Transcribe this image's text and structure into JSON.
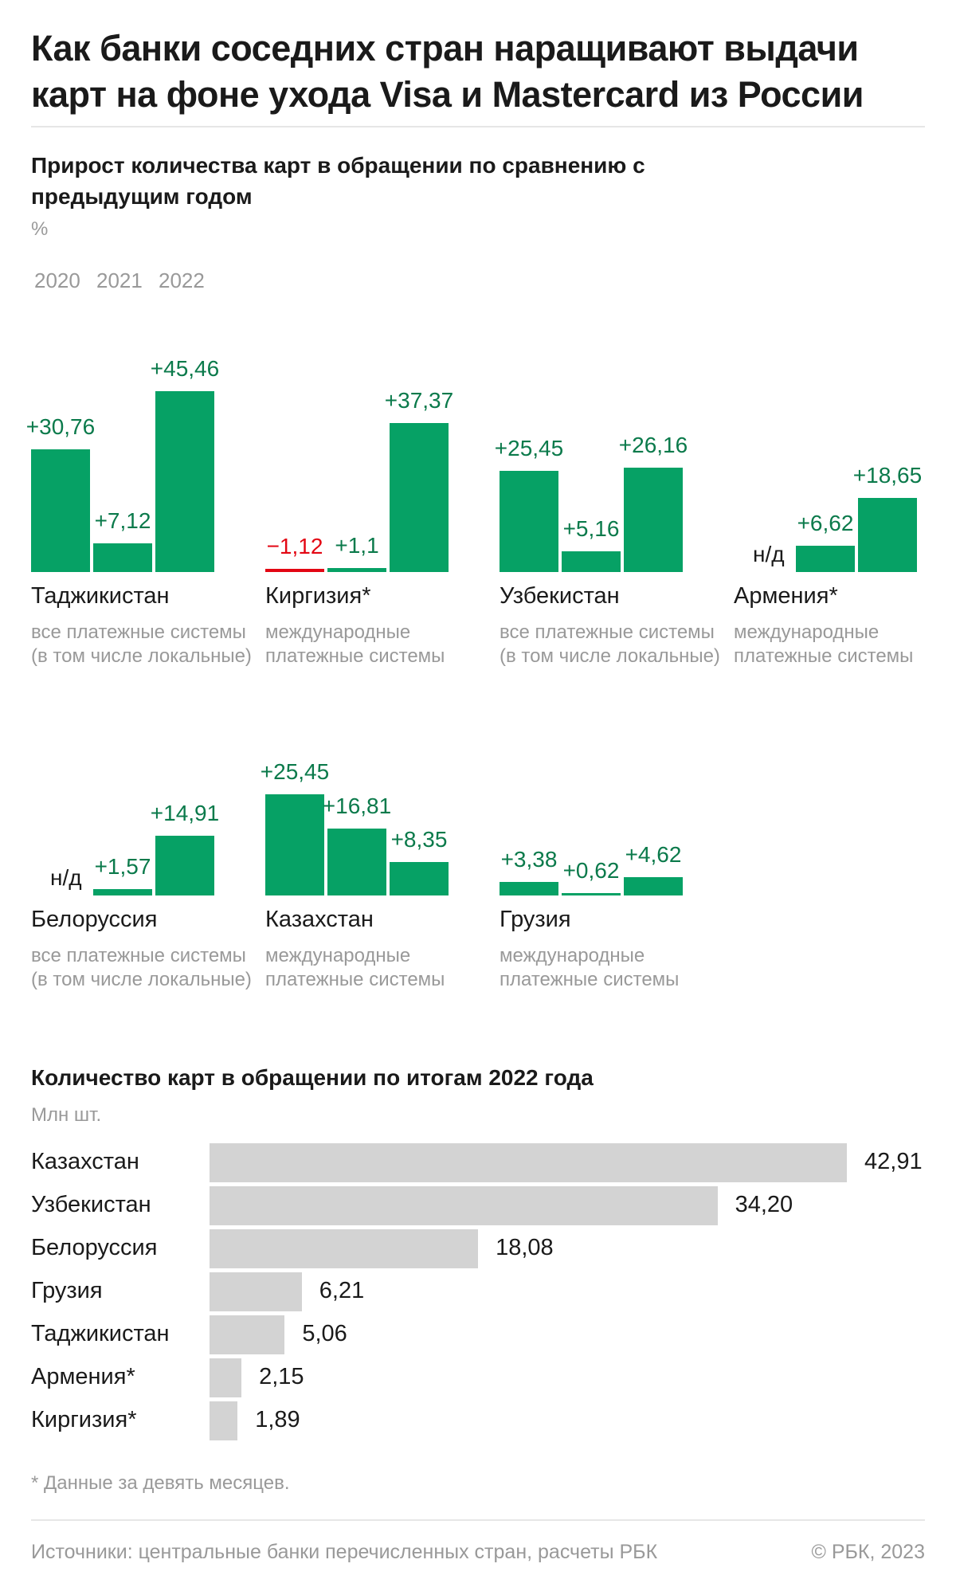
{
  "title": "Как банки соседних стран наращивают выдачи карт на фоне ухода Visa и Mastercard из России",
  "colors": {
    "positive": "#06a165",
    "negative": "#e30613",
    "label_green": "#0b7a4b",
    "muted": "#999999",
    "hbar": "#d3d3d3"
  },
  "chart_data": [
    {
      "type": "bar",
      "title": "Прирост количества карт в обращении по сравнению с предыдущим годом",
      "unit": "%",
      "years": [
        "2020",
        "2021",
        "2022"
      ],
      "no_data_label": "н/д",
      "groups": [
        {
          "country": "Таджикистан",
          "note": "все платежные системы (в том числе локальные)",
          "values": [
            30.76,
            7.12,
            45.46
          ],
          "labels": [
            "+30,76",
            "+7,12",
            "+45,46"
          ]
        },
        {
          "country": "Киргизия*",
          "note": "международные платежные системы",
          "values": [
            -1.12,
            1.1,
            37.37
          ],
          "labels": [
            "−1,12",
            "+1,1",
            "+37,37"
          ]
        },
        {
          "country": "Узбекистан",
          "note": "все платежные системы (в том числе локальные)",
          "values": [
            25.45,
            5.16,
            26.16
          ],
          "labels": [
            "+25,45",
            "+5,16",
            "+26,16"
          ]
        },
        {
          "country": "Армения*",
          "note": "международные платежные системы",
          "values": [
            null,
            6.62,
            18.65
          ],
          "labels": [
            null,
            "+6,62",
            "+18,65"
          ]
        },
        {
          "country": "Белоруссия",
          "note": "все платежные системы (в том числе локальные)",
          "values": [
            null,
            1.57,
            14.91
          ],
          "labels": [
            null,
            "+1,57",
            "+14,91"
          ]
        },
        {
          "country": "Казахстан",
          "note": "международные платежные системы",
          "values": [
            25.45,
            16.81,
            8.35
          ],
          "labels": [
            "+25,45",
            "+16,81",
            "+8,35"
          ]
        },
        {
          "country": "Грузия",
          "note": "международные платежные системы",
          "values": [
            3.38,
            0.62,
            4.62
          ],
          "labels": [
            "+3,38",
            "+0,62",
            "+4,62"
          ]
        }
      ]
    },
    {
      "type": "bar",
      "orientation": "horizontal",
      "title": "Количество карт в обращении по итогам 2022 года",
      "unit": "Млн шт.",
      "categories": [
        "Казахстан",
        "Узбекистан",
        "Белоруссия",
        "Грузия",
        "Таджикистан",
        "Армения*",
        "Киргизия*"
      ],
      "values": [
        42.91,
        34.2,
        18.08,
        6.21,
        5.06,
        2.15,
        1.89
      ],
      "labels": [
        "42,91",
        "34,20",
        "18,08",
        "6,21",
        "5,06",
        "2,15",
        "1,89"
      ],
      "xlim": [
        0,
        42.91
      ]
    }
  ],
  "footnote": "* Данные за девять месяцев.",
  "source": "Источники: центральные банки перечисленных стран, расчеты РБК",
  "copyright": "© РБК, 2023"
}
